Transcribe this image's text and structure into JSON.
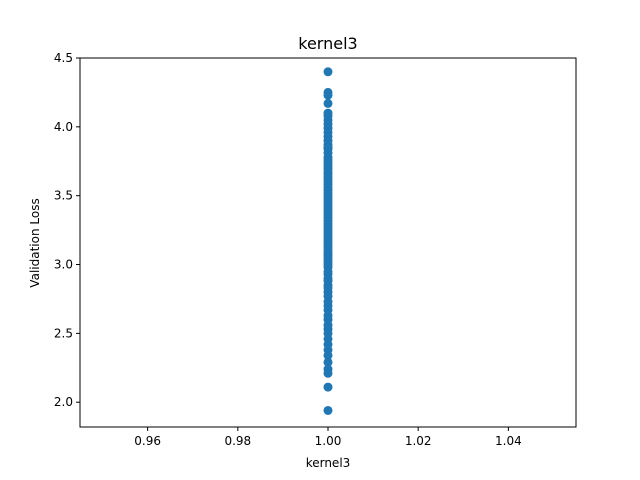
{
  "chart_data": {
    "type": "scatter",
    "title": "kernel3",
    "xlabel": "kernel3",
    "ylabel": "Validation Loss",
    "xlim": [
      0.945,
      1.055
    ],
    "ylim": [
      1.82,
      4.5
    ],
    "xticks": [
      0.96,
      0.98,
      1.0,
      1.02,
      1.04
    ],
    "xtick_labels": [
      "0.96",
      "0.98",
      "1.00",
      "1.02",
      "1.04"
    ],
    "yticks": [
      2.0,
      2.5,
      3.0,
      3.5,
      4.0,
      4.5
    ],
    "ytick_labels": [
      "2.0",
      "2.5",
      "3.0",
      "3.5",
      "4.0",
      "4.5"
    ],
    "grid": false,
    "marker_color": "#1f77b4",
    "series": [
      {
        "x": [
          1.0,
          1.0,
          1.0,
          1.0,
          1.0,
          1.0,
          1.0,
          1.0,
          1.0,
          1.0,
          1.0,
          1.0,
          1.0,
          1.0,
          1.0,
          1.0,
          1.0,
          1.0,
          1.0,
          1.0,
          1.0,
          1.0,
          1.0,
          1.0,
          1.0,
          1.0,
          1.0,
          1.0,
          1.0,
          1.0,
          1.0,
          1.0,
          1.0,
          1.0,
          1.0,
          1.0,
          1.0,
          1.0,
          1.0,
          1.0,
          1.0,
          1.0,
          1.0,
          1.0,
          1.0,
          1.0,
          1.0,
          1.0,
          1.0,
          1.0,
          1.0,
          1.0,
          1.0,
          1.0,
          1.0,
          1.0,
          1.0,
          1.0,
          1.0,
          1.0,
          1.0,
          1.0,
          1.0,
          1.0,
          1.0,
          1.0,
          1.0,
          1.0,
          1.0,
          1.0,
          1.0,
          1.0,
          1.0,
          1.0,
          1.0,
          1.0,
          1.0,
          1.0,
          1.0,
          1.0,
          1.0,
          1.0
        ],
        "y": [
          1.94,
          2.11,
          2.21,
          2.24,
          2.29,
          2.34,
          2.38,
          2.42,
          2.46,
          2.5,
          2.53,
          2.56,
          2.6,
          2.63,
          2.67,
          2.7,
          2.73,
          2.77,
          2.8,
          2.83,
          2.85,
          2.88,
          2.9,
          2.93,
          2.95,
          2.98,
          3.0,
          3.02,
          3.04,
          3.06,
          3.08,
          3.1,
          3.12,
          3.14,
          3.16,
          3.18,
          3.2,
          3.22,
          3.24,
          3.26,
          3.28,
          3.3,
          3.32,
          3.34,
          3.36,
          3.38,
          3.4,
          3.42,
          3.44,
          3.46,
          3.48,
          3.5,
          3.52,
          3.54,
          3.56,
          3.58,
          3.6,
          3.62,
          3.64,
          3.66,
          3.68,
          3.7,
          3.72,
          3.74,
          3.76,
          3.78,
          3.81,
          3.84,
          3.87,
          3.9,
          3.93,
          3.96,
          3.99,
          4.02,
          4.05,
          4.08,
          4.1,
          4.17,
          4.23,
          4.25,
          4.4,
          3.85
        ]
      }
    ]
  }
}
